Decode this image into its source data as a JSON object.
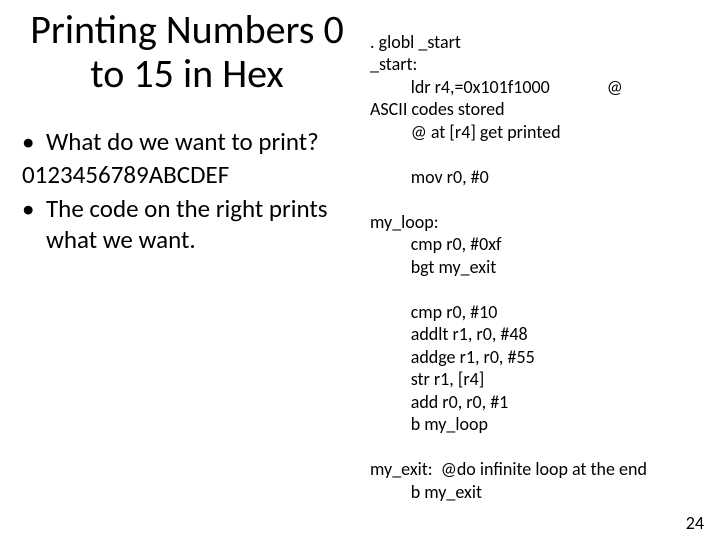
{
  "title": "Printing Numbers 0 to 15 in Hex",
  "bullets": {
    "b1": "What do we want to print?",
    "plain": "0123456789ABCDEF",
    "b2": "The code on the right  prints what we want."
  },
  "code": {
    "l1": ". globl _start",
    "l2": "_start:",
    "l3": "          ldr r4,=0x101f1000              @",
    "l4": "ASCII codes stored",
    "l5": "          @ at [r4] get printed",
    "blank1": " ",
    "l6": "          mov r0, #0",
    "blank2": " ",
    "l7": "my_loop:",
    "l8": "          cmp r0, #0xf",
    "l9": "          bgt my_exit",
    "blank3": " ",
    "l10": "          cmp r0, #10",
    "l11": "          addlt r1, r0, #48",
    "l12": "          addge r1, r0, #55",
    "l13": "          str r1, [r4]",
    "l14": "          add r0, r0, #1",
    "l15": "          b my_loop",
    "blank4": " ",
    "l16": "my_exit:  @do infinite loop at the end",
    "l17": "          b my_exit"
  },
  "pageNumber": "24",
  "colors": {
    "bg": "#ffffff",
    "text": "#000000"
  }
}
